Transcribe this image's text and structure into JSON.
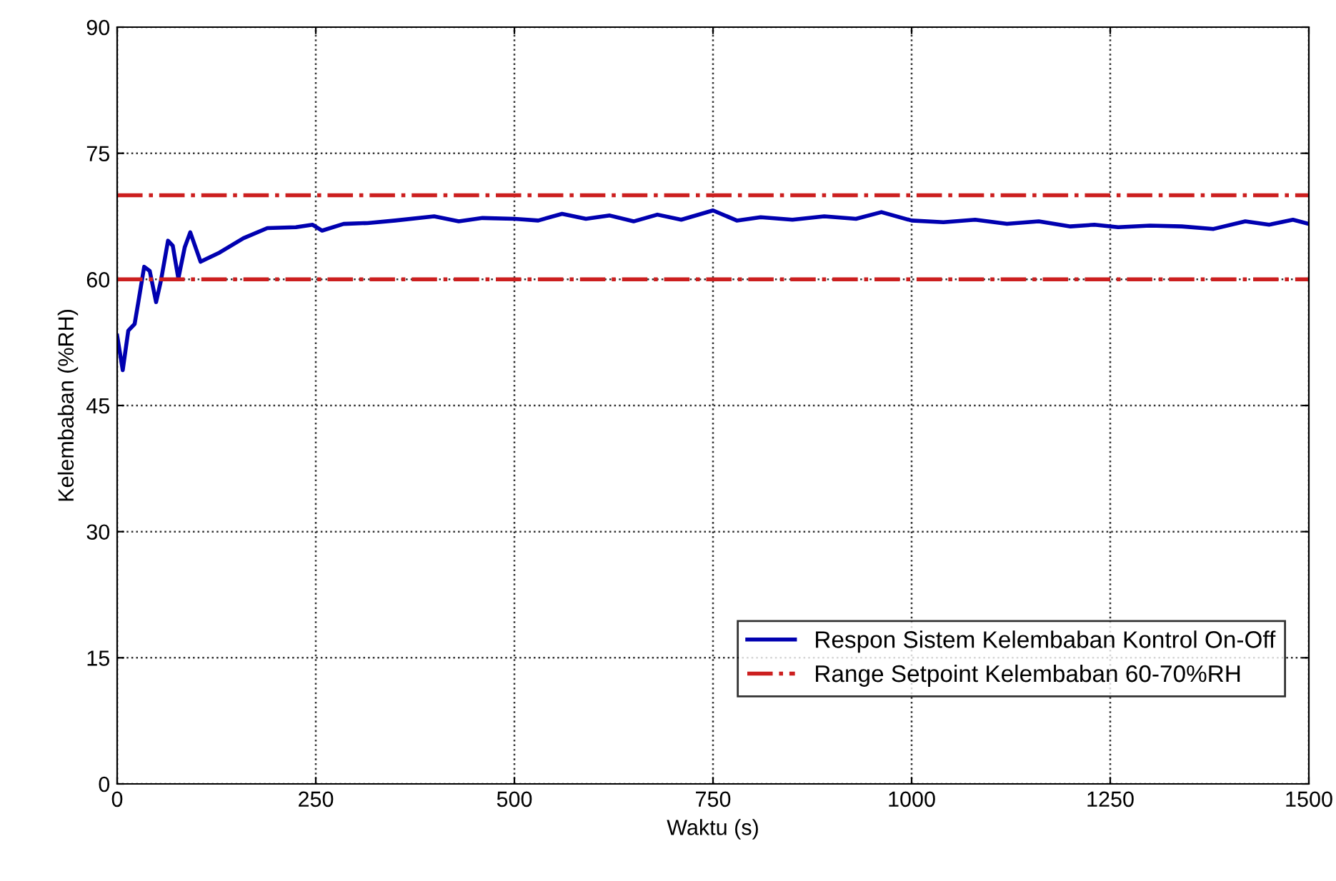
{
  "chart_data": {
    "type": "line",
    "xlabel": "Waktu (s)",
    "ylabel": "Kelembaban (%RH)",
    "xlim": [
      0,
      1500
    ],
    "ylim": [
      0,
      90
    ],
    "xticks": [
      0,
      250,
      500,
      750,
      1000,
      1250,
      1500
    ],
    "yticks": [
      0,
      15,
      30,
      45,
      60,
      75,
      90
    ],
    "grid": true,
    "legend": "bottom right",
    "line_style": "solid",
    "series": [
      {
        "name": "Respon Sistem Kelembaban Kontrol On-Off",
        "color": "#0000b0",
        "x": [
          0,
          7,
          14,
          22,
          27,
          34,
          41,
          49,
          55,
          64,
          70,
          77,
          85,
          92,
          105,
          129,
          159,
          189,
          225,
          246,
          258,
          285,
          315,
          350,
          399,
          430,
          460,
          500,
          530,
          560,
          590,
          620,
          650,
          680,
          710,
          750,
          780,
          810,
          850,
          890,
          930,
          962,
          1000,
          1040,
          1080,
          1120,
          1160,
          1200,
          1230,
          1260,
          1300,
          1340,
          1380,
          1420,
          1450,
          1480,
          1500
        ],
        "values": [
          53.3,
          49.2,
          53.9,
          54.7,
          57.5,
          61.5,
          61.0,
          57.3,
          59.8,
          64.6,
          64.0,
          60.1,
          63.8,
          65.6,
          62.1,
          63.2,
          64.9,
          66.1,
          66.2,
          66.5,
          65.8,
          66.6,
          66.7,
          67.0,
          67.5,
          66.9,
          67.3,
          67.2,
          67.0,
          67.8,
          67.2,
          67.6,
          66.9,
          67.7,
          67.1,
          68.2,
          67.0,
          67.4,
          67.1,
          67.5,
          67.2,
          68.0,
          67.0,
          66.8,
          67.1,
          66.6,
          66.9,
          66.3,
          66.5,
          66.2,
          66.4,
          66.3,
          66.0,
          66.9,
          66.5,
          67.1,
          66.6
        ]
      }
    ],
    "ref_lines": [
      {
        "axis": "y",
        "value": 70,
        "label": "Range Setpoint Kelembaban 60-70%RH",
        "color": "#cc1f1f",
        "line_style": "dashdot"
      },
      {
        "axis": "y",
        "value": 60,
        "label": null,
        "color": "#cc1f1f",
        "line_style": "dashdot"
      }
    ]
  }
}
